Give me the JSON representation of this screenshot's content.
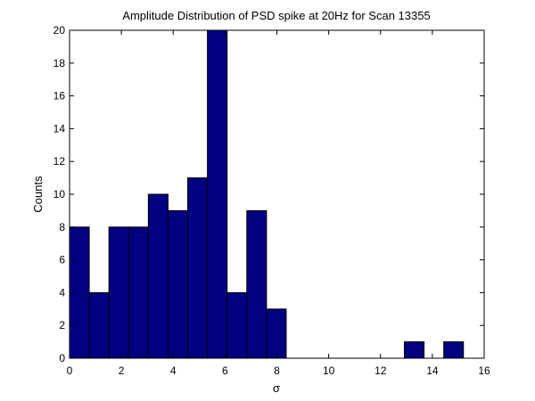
{
  "chart_data": {
    "type": "bar",
    "title": "Amplitude Distribution of PSD spike at 20Hz for Scan 13355",
    "xlabel": "σ",
    "ylabel": "Counts",
    "xlim": [
      0,
      16
    ],
    "ylim": [
      0,
      20
    ],
    "xticks": [
      0,
      2,
      4,
      6,
      8,
      10,
      12,
      14,
      16
    ],
    "yticks": [
      0,
      2,
      4,
      6,
      8,
      10,
      12,
      14,
      16,
      18,
      20
    ],
    "bin_edges": [
      0.0,
      0.76,
      1.52,
      2.28,
      3.04,
      3.8,
      4.56,
      5.32,
      6.08,
      6.84,
      7.6,
      8.36,
      9.12,
      9.88,
      10.64,
      11.4,
      12.16,
      12.92,
      13.68,
      14.44,
      15.2
    ],
    "counts": [
      8,
      4,
      8,
      8,
      10,
      9,
      11,
      20,
      4,
      9,
      3,
      0,
      0,
      0,
      0,
      0,
      0,
      1,
      0,
      1
    ],
    "bar_color": "#000080",
    "edge_color": "#000000",
    "grid": false
  }
}
